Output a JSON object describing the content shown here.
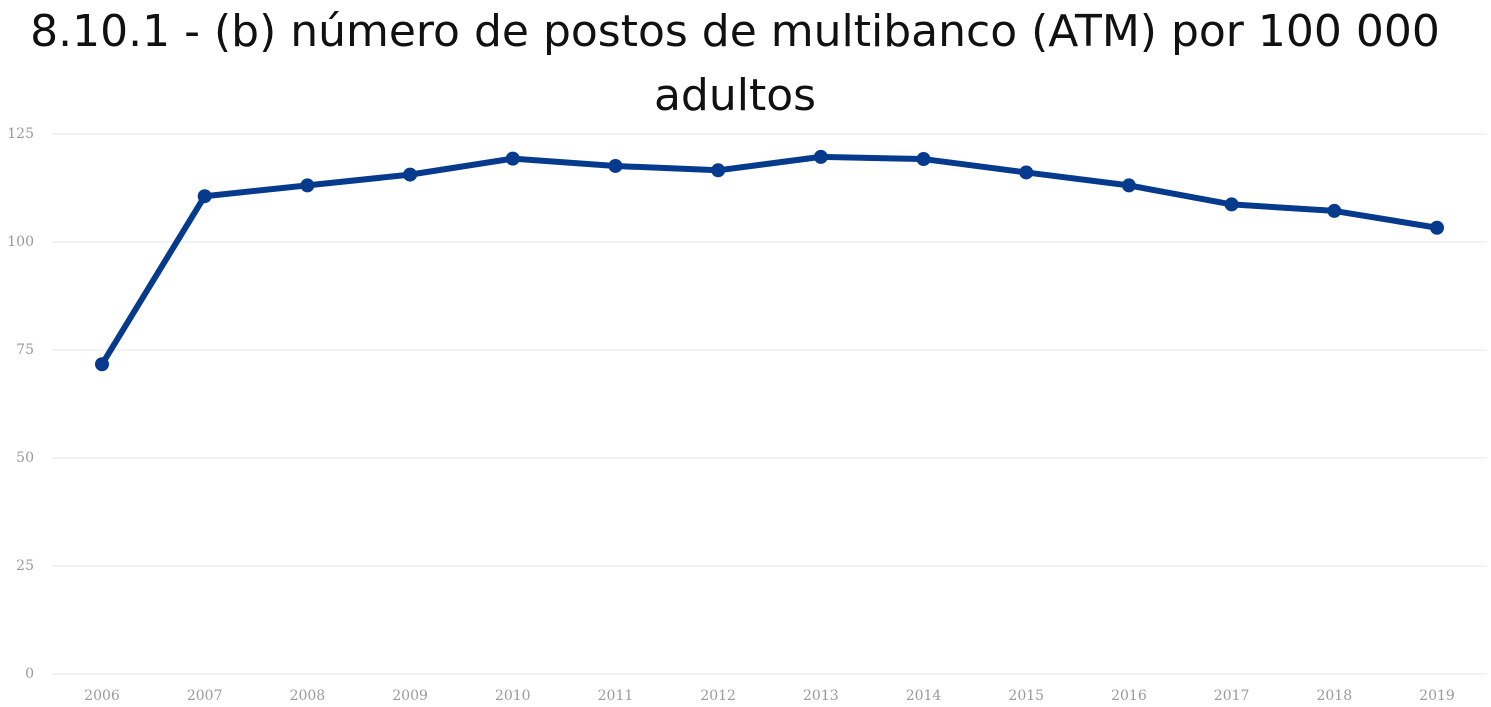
{
  "chart_data": {
    "type": "line",
    "title": "8.10.1 - (b) número de postos de multibanco (ATM) por 100 000 adultos",
    "xlabel": "",
    "ylabel": "",
    "categories": [
      "2006",
      "2007",
      "2008",
      "2009",
      "2010",
      "2011",
      "2012",
      "2013",
      "2014",
      "2015",
      "2016",
      "2017",
      "2018",
      "2019"
    ],
    "series": [
      {
        "values": [
          71.7,
          110.6,
          113.1,
          115.6,
          119.3,
          117.6,
          116.6,
          119.7,
          119.2,
          116.1,
          113.1,
          108.7,
          107.2,
          103.3
        ]
      }
    ],
    "ylim": [
      0,
      125
    ],
    "yticks": [
      "0",
      "25",
      "50",
      "75",
      "100",
      "125"
    ],
    "grid": true,
    "legend": "none",
    "colors": {
      "line": "#063a8c",
      "grid": "#e6e6e6",
      "tick_text": "#9a9a9a"
    }
  }
}
